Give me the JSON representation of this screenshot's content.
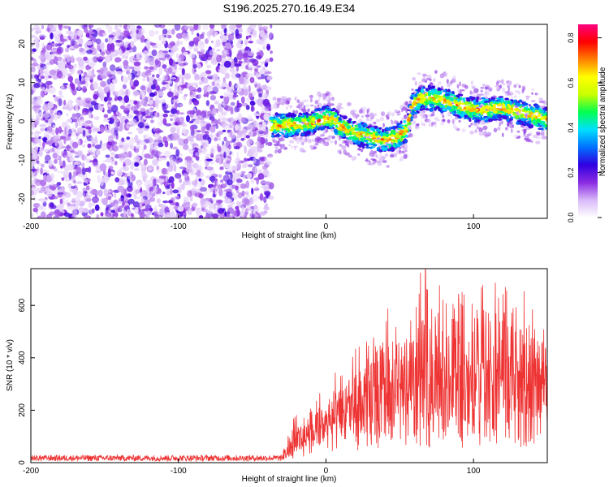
{
  "title": "S196.2025.270.16.49.E34",
  "chart_data": [
    {
      "type": "heatmap",
      "xlabel": "Height of straight line (km)",
      "ylabel": "Frequency (Hz)",
      "xlim": [
        -200,
        150
      ],
      "ylim": [
        -25,
        25
      ],
      "xticks": [
        -200,
        -100,
        0,
        100
      ],
      "yticks": [
        -20,
        -10,
        0,
        10,
        20
      ],
      "noise_region_x": [
        -200,
        -37
      ],
      "ridge": {
        "x": [
          -37,
          -30,
          -20,
          -10,
          0,
          5,
          10,
          20,
          30,
          40,
          48,
          55,
          58,
          65,
          70,
          80,
          90,
          100,
          110,
          120,
          130,
          140,
          150
        ],
        "y": [
          -1,
          -1,
          -1,
          -0.5,
          1,
          0.5,
          -1.5,
          -3,
          -4,
          -5,
          -4,
          -2,
          4,
          6,
          6,
          5.5,
          4,
          3,
          3,
          3.5,
          2.5,
          1.5,
          0.5
        ]
      },
      "colorbar": {
        "label": "Normalized spectral amplitude",
        "range": [
          0,
          0.86
        ],
        "ticks": [
          "0.0",
          "0.2",
          "0.4",
          "0.6",
          "0.8"
        ],
        "colors": [
          "#ffffff",
          "#d8b8f8",
          "#8a2be2",
          "#3000e0",
          "#0070ff",
          "#00e0ff",
          "#00ff50",
          "#c8ff00",
          "#ffff00",
          "#ff8000",
          "#ff0000",
          "#ff0080"
        ]
      }
    },
    {
      "type": "line",
      "xlabel": "Height of straight line (km)",
      "ylabel": "SNR (10 * v/v)",
      "xlim": [
        -200,
        150
      ],
      "ylim": [
        0,
        740
      ],
      "xticks": [
        -200,
        -100,
        0,
        100
      ],
      "yticks": [
        0,
        200,
        400,
        600
      ],
      "color": "#ee3333",
      "envelope": {
        "x": [
          -200,
          -30,
          -25,
          -20,
          -10,
          0,
          10,
          20,
          30,
          40,
          50,
          60,
          65,
          70,
          80,
          90,
          100,
          110,
          120,
          130,
          140,
          150
        ],
        "base": [
          15,
          15,
          30,
          70,
          100,
          130,
          150,
          160,
          180,
          200,
          200,
          220,
          220,
          230,
          220,
          220,
          240,
          230,
          250,
          240,
          220,
          230
        ],
        "peak": [
          30,
          32,
          120,
          160,
          200,
          250,
          300,
          380,
          420,
          500,
          560,
          600,
          740,
          640,
          600,
          680,
          600,
          650,
          700,
          600,
          520,
          520
        ]
      }
    }
  ]
}
